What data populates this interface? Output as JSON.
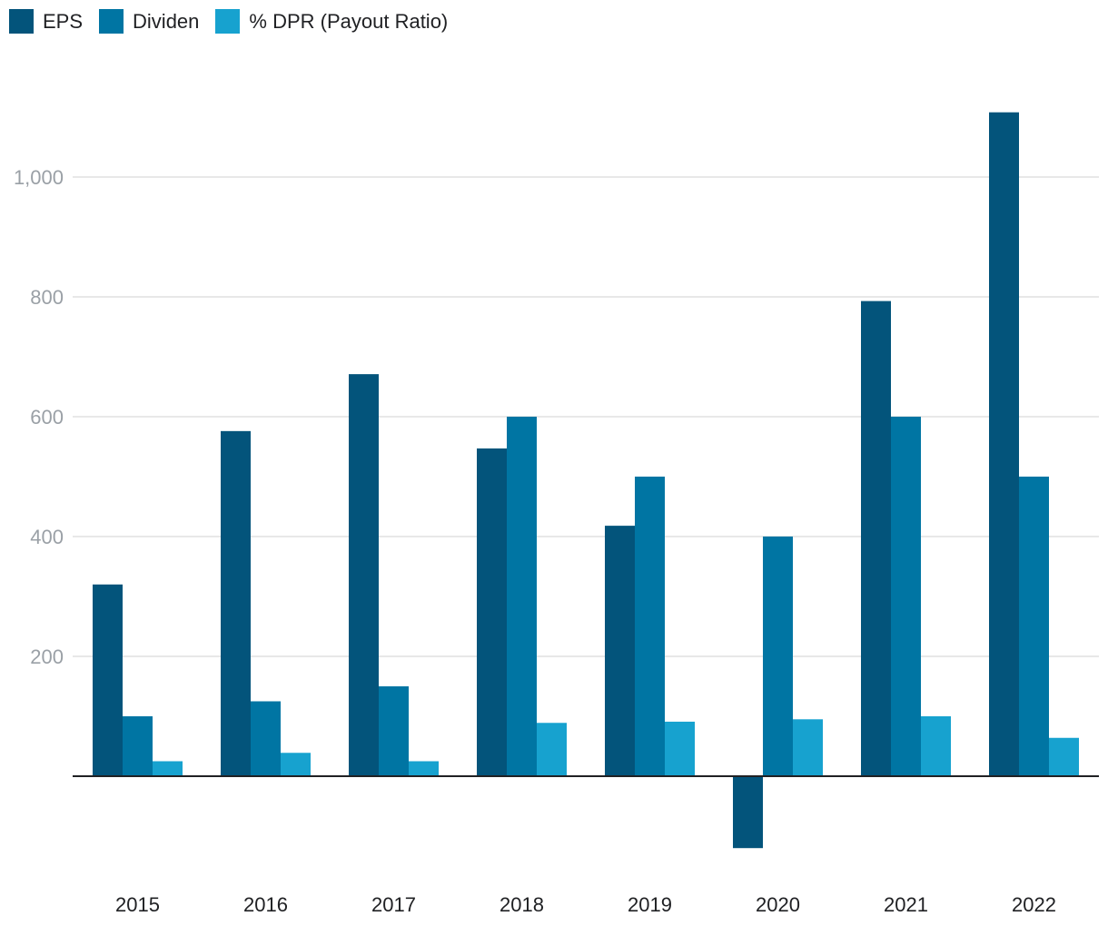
{
  "chart_data": {
    "type": "bar",
    "categories": [
      "2015",
      "2016",
      "2017",
      "2018",
      "2019",
      "2020",
      "2021",
      "2022"
    ],
    "series": [
      {
        "name": "EPS",
        "color": "#03547b",
        "values": [
          320,
          576,
          671,
          547,
          418,
          -120,
          793,
          1108
        ]
      },
      {
        "name": "Dividen",
        "color": "#0075a3",
        "values": [
          100,
          125,
          150,
          600,
          500,
          400,
          600,
          500
        ]
      },
      {
        "name": "% DPR (Payout Ratio)",
        "color": "#17a2cf",
        "values": [
          25,
          39,
          25,
          89,
          91,
          95,
          100,
          64
        ]
      }
    ],
    "yticks": [
      {
        "value": 200,
        "label": "200"
      },
      {
        "value": 400,
        "label": "400"
      },
      {
        "value": 600,
        "label": "600"
      },
      {
        "value": 800,
        "label": "800"
      },
      {
        "value": 1000,
        "label": "1,000"
      }
    ],
    "ylim": [
      -155,
      1200
    ],
    "grid": true,
    "legend": "top-left",
    "title": "",
    "xlabel": "",
    "ylabel": ""
  }
}
